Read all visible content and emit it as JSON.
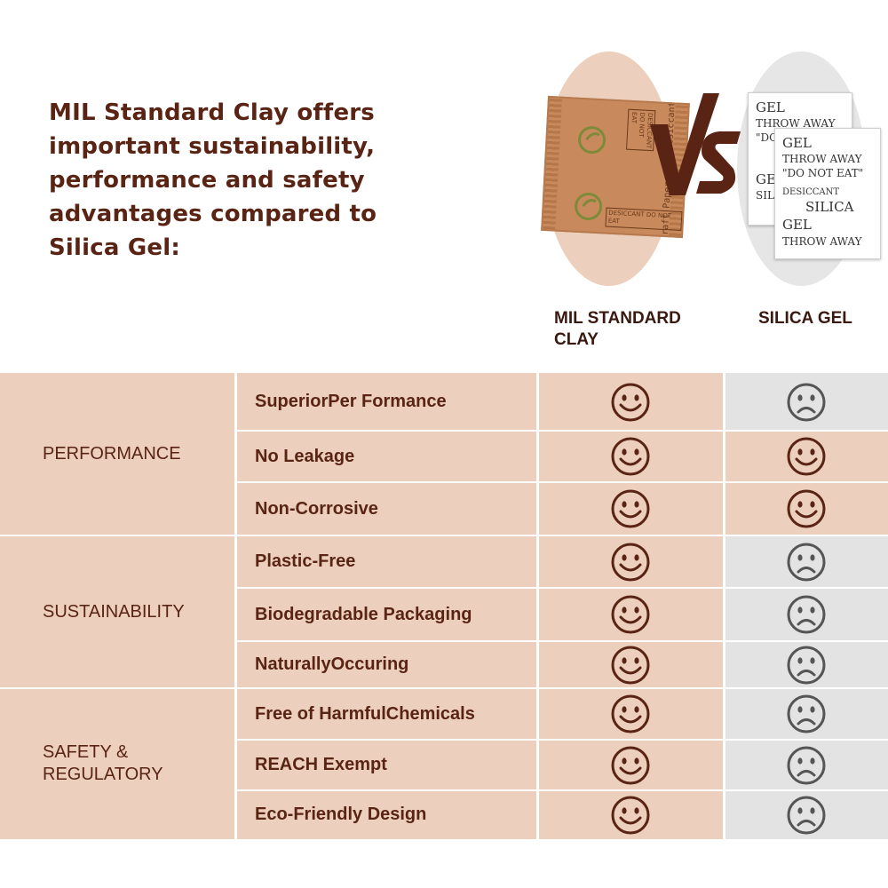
{
  "headline": "MIL Standard Clay offers important sustainability, performance and safety advantages compared to Silica Gel:",
  "images": {
    "clay_packet": {
      "texts": [
        "DESICCANT DO NOT EAT",
        "Kraft Paper Clay Desiccant",
        "DESICCANT DO NOT EAT"
      ]
    },
    "vs_text": "VS",
    "silica_packets": {
      "back": [
        "GEL",
        "THROW AWAY",
        "\"DO NOT",
        "GEL",
        "SIL"
      ],
      "front": [
        "GEL",
        "THROW AWAY",
        "\"DO NOT EAT\"",
        "DESICCANT",
        "SILICA",
        "GEL",
        "THROW AWAY"
      ]
    }
  },
  "columns": {
    "clay": "MIL STANDARD CLAY",
    "silica": "SILICA GEL"
  },
  "colors": {
    "brown": "#5a2415",
    "clay_bg": "#ecd0bd",
    "silica_bg": "#e3e3e3",
    "gray_icon": "#555555"
  },
  "categories": [
    {
      "label": "PERFORMANCE",
      "rows": 3
    },
    {
      "label": "SUSTAINABILITY",
      "rows": 3
    },
    {
      "label": "SAFETY & REGULATORY",
      "rows": 3
    }
  ],
  "rows": [
    {
      "feature": "SuperiorPer Formance",
      "clay": "smile-icon",
      "silica": "frown-icon"
    },
    {
      "feature": "No Leakage",
      "clay": "smile-icon",
      "silica": "smile-icon"
    },
    {
      "feature": "Non-Corrosive",
      "clay": "smile-icon",
      "silica": "smile-icon"
    },
    {
      "feature": "Plastic-Free",
      "clay": "smile-icon",
      "silica": "frown-icon"
    },
    {
      "feature": "Biodegradable Packaging",
      "clay": "smile-icon",
      "silica": "frown-icon"
    },
    {
      "feature": "NaturallyOccuring",
      "clay": "smile-icon",
      "silica": "frown-icon"
    },
    {
      "feature": "Free of HarmfulChemicals",
      "clay": "smile-icon",
      "silica": "frown-icon"
    },
    {
      "feature": "REACH Exempt",
      "clay": "smile-icon",
      "silica": "frown-icon"
    },
    {
      "feature": "Eco-Friendly Design",
      "clay": "smile-icon",
      "silica": "frown-icon"
    }
  ]
}
